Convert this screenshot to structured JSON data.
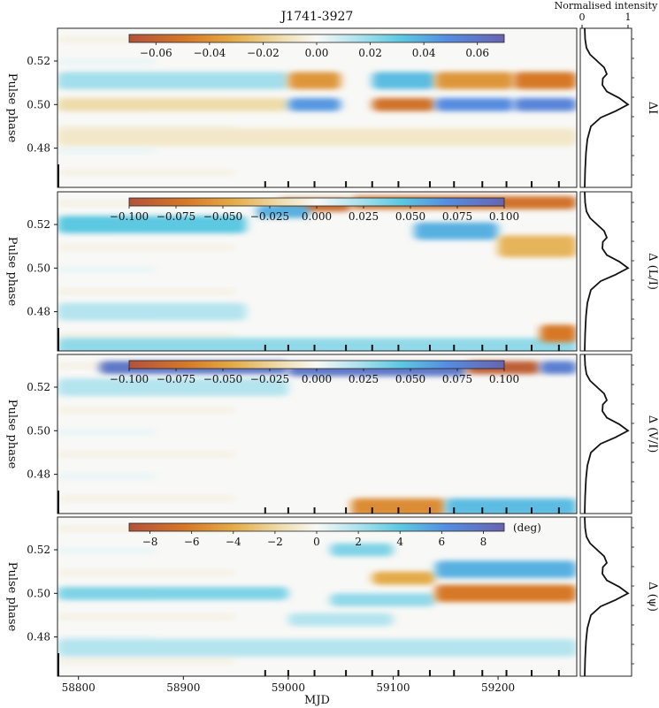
{
  "chart_data": {
    "type": "heatmap",
    "title": "J1741-3927",
    "xlabel": "MJD",
    "x_ticks": [
      "58800",
      "58900",
      "59000",
      "59100",
      "59200"
    ],
    "x_range": [
      58780,
      59275
    ],
    "y_range": [
      0.535,
      0.462
    ],
    "y_ticks": [
      "0.48",
      "0.50",
      "0.52"
    ],
    "profile_axis": {
      "label": "Normalised intensity",
      "ticks": [
        "0",
        "1"
      ]
    },
    "observation_mjds": [
      58978,
      59000,
      59025,
      59055,
      59080,
      59105,
      59135,
      59158,
      59185,
      59208,
      59232,
      59258
    ],
    "profile": {
      "phase": [
        0.462,
        0.47,
        0.478,
        0.484,
        0.49,
        0.494,
        0.497,
        0.5,
        0.503,
        0.506,
        0.509,
        0.512,
        0.514,
        0.517,
        0.52,
        0.523,
        0.526,
        0.53,
        0.535
      ],
      "intensity": [
        0.02,
        0.03,
        0.05,
        0.08,
        0.16,
        0.38,
        0.72,
        1.0,
        0.8,
        0.52,
        0.42,
        0.43,
        0.52,
        0.46,
        0.3,
        0.14,
        0.06,
        0.03,
        0.02
      ]
    },
    "panels": [
      {
        "ylabel": "Pulse phase",
        "side_label": "ΔI",
        "cbar_ticks": [
          "−0.06",
          "−0.04",
          "−0.02",
          "0.00",
          "0.02",
          "0.04",
          "0.06"
        ],
        "cbar_range": [
          -0.07,
          0.07
        ],
        "cbar_unit": "",
        "features": [
          [
            58780,
            59000,
            0.5,
            0.003,
            -0.2
          ],
          [
            58780,
            59000,
            0.511,
            0.004,
            0.25
          ],
          [
            59000,
            59050,
            0.5,
            0.003,
            0.65
          ],
          [
            59000,
            59050,
            0.511,
            0.004,
            -0.55
          ],
          [
            59080,
            59140,
            0.5,
            0.003,
            -0.75
          ],
          [
            59080,
            59140,
            0.511,
            0.004,
            0.5
          ],
          [
            59140,
            59215,
            0.5,
            0.003,
            0.7
          ],
          [
            59140,
            59215,
            0.511,
            0.004,
            -0.55
          ],
          [
            59215,
            59275,
            0.5,
            0.003,
            0.75
          ],
          [
            59215,
            59275,
            0.511,
            0.004,
            -0.7
          ],
          [
            58780,
            59275,
            0.485,
            0.004,
            -0.12
          ]
        ]
      },
      {
        "ylabel": "Pulse phase",
        "side_label": "Δ (L/I)",
        "cbar_ticks": [
          "−0.100",
          "−0.075",
          "−0.050",
          "−0.025",
          "0.000",
          "0.025",
          "0.050",
          "0.075",
          "0.100"
        ],
        "cbar_range": [
          -0.1,
          0.1
        ],
        "cbar_unit": "",
        "features": [
          [
            58780,
            59275,
            0.464,
            0.004,
            0.3
          ],
          [
            58780,
            58960,
            0.52,
            0.004,
            0.45
          ],
          [
            58780,
            58960,
            0.48,
            0.004,
            0.2
          ],
          [
            58990,
            59060,
            0.529,
            0.003,
            -0.8
          ],
          [
            59060,
            59275,
            0.53,
            0.003,
            -0.75
          ],
          [
            58970,
            59020,
            0.526,
            0.003,
            0.55
          ],
          [
            59120,
            59200,
            0.517,
            0.004,
            0.55
          ],
          [
            59200,
            59275,
            0.51,
            0.005,
            -0.4
          ],
          [
            59240,
            59275,
            0.47,
            0.004,
            -0.7
          ]
        ]
      },
      {
        "ylabel": "Pulse phase",
        "side_label": "Δ (V/I)",
        "cbar_ticks": [
          "−0.100",
          "−0.075",
          "−0.050",
          "−0.025",
          "0.000",
          "0.025",
          "0.050",
          "0.075",
          "0.100"
        ],
        "cbar_range": [
          -0.1,
          0.1
        ],
        "cbar_unit": "",
        "features": [
          [
            58820,
            59000,
            0.529,
            0.003,
            0.85
          ],
          [
            59000,
            59170,
            0.528,
            0.003,
            0.85
          ],
          [
            59170,
            59240,
            0.529,
            0.003,
            -0.9
          ],
          [
            59240,
            59275,
            0.529,
            0.003,
            0.8
          ],
          [
            59060,
            59150,
            0.465,
            0.004,
            -0.6
          ],
          [
            59150,
            59275,
            0.465,
            0.004,
            0.5
          ],
          [
            58780,
            59000,
            0.52,
            0.004,
            0.2
          ]
        ]
      },
      {
        "ylabel": "Pulse phase",
        "side_label": "Δ (ψ)",
        "cbar_ticks": [
          "−8",
          "−6",
          "−4",
          "−2",
          "0",
          "2",
          "4",
          "6",
          "8"
        ],
        "cbar_range": [
          -9,
          9
        ],
        "cbar_unit": "(deg)",
        "features": [
          [
            58780,
            59000,
            0.5,
            0.003,
            0.35
          ],
          [
            59040,
            59140,
            0.497,
            0.003,
            0.3
          ],
          [
            59080,
            59140,
            0.507,
            0.003,
            -0.45
          ],
          [
            59140,
            59275,
            0.5,
            0.004,
            -0.7
          ],
          [
            59140,
            59275,
            0.511,
            0.004,
            0.55
          ],
          [
            59040,
            59100,
            0.52,
            0.003,
            0.35
          ],
          [
            58780,
            59275,
            0.475,
            0.004,
            0.2
          ],
          [
            59000,
            59100,
            0.488,
            0.003,
            0.2
          ]
        ]
      }
    ]
  }
}
